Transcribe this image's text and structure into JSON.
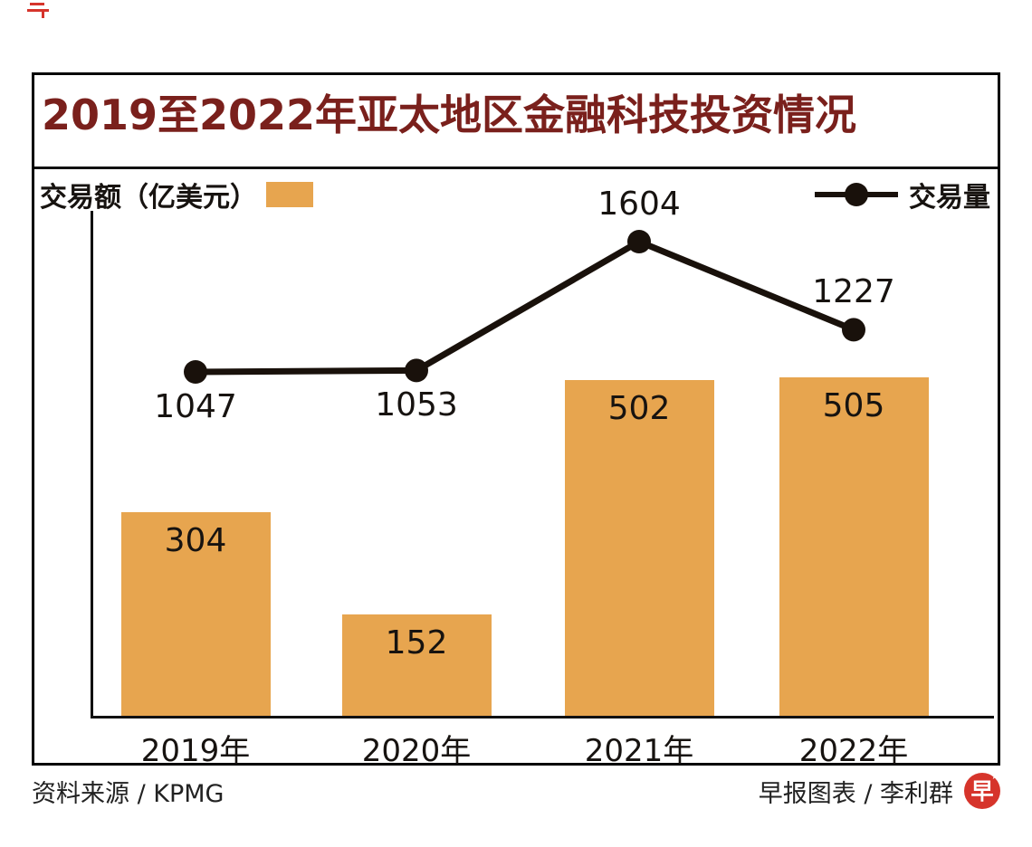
{
  "title": "2019至2022年亚太地区金融科技投资情况",
  "legend": {
    "bar_label": "交易额（亿美元）",
    "line_label": "交易量"
  },
  "chart_data": {
    "type": "bar+line",
    "categories": [
      "2019年",
      "2020年",
      "2021年",
      "2022年"
    ],
    "series": [
      {
        "name": "交易额（亿美元）",
        "type": "bar",
        "values": [
          304,
          152,
          502,
          505
        ],
        "color": "#e7a54f"
      },
      {
        "name": "交易量",
        "type": "line",
        "values": [
          1047,
          1053,
          1604,
          1227
        ],
        "color": "#19110b",
        "label_position": [
          "below",
          "below",
          "above",
          "above"
        ]
      }
    ],
    "ylim_bar": [
      0,
      540
    ],
    "ylim_line": [
      900,
      1750
    ],
    "grid": false,
    "legend_position": "top",
    "value_labels_shown": true
  },
  "footer": {
    "source": "资料来源 / KPMG",
    "credit": "早报图表 / 李利群",
    "logo_char": "早",
    "logo_star": "★"
  },
  "colors": {
    "bar": "#e7a54f",
    "line": "#19110b",
    "title": "#7a201c",
    "border": "#000000",
    "logo_red": "#d6342b"
  }
}
